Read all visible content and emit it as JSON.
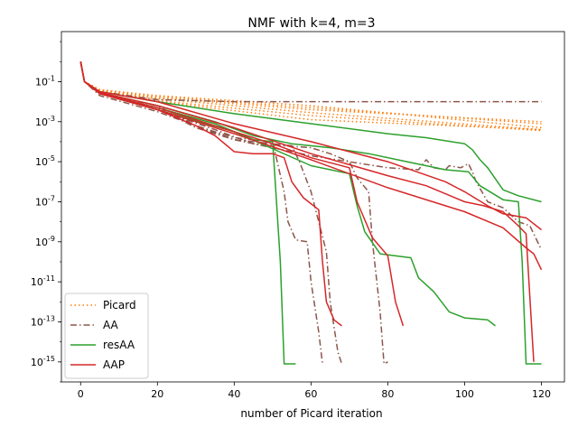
{
  "chart_data": {
    "type": "line",
    "title": "NMF with k=4, m=3",
    "xlabel": "number of Picard iteration",
    "ylabel": "",
    "xlim": [
      -5,
      126
    ],
    "ylog": true,
    "ylim_exp": [
      -16,
      1.5
    ],
    "x_ticks": [
      0,
      20,
      40,
      60,
      80,
      100,
      120
    ],
    "y_ticks": [
      {
        "exp": -1,
        "label": "10^-1"
      },
      {
        "exp": -3,
        "label": "10^-3"
      },
      {
        "exp": -5,
        "label": "10^-5"
      },
      {
        "exp": -7,
        "label": "10^-7"
      },
      {
        "exp": -9,
        "label": "10^-9"
      },
      {
        "exp": -11,
        "label": "10^-11"
      },
      {
        "exp": -13,
        "label": "10^-13"
      },
      {
        "exp": -15,
        "label": "10^-15"
      }
    ],
    "grid": false,
    "legend": {
      "placement": "lower-left",
      "entries": [
        {
          "label": "Picard",
          "color": "#ff7f0e",
          "dash": "dotted"
        },
        {
          "label": "AA",
          "color": "#8c564b",
          "dash": "dashdot"
        },
        {
          "label": "resAA",
          "color": "#2ca02c",
          "dash": "solid"
        },
        {
          "label": "AAP",
          "color": "#d62728",
          "dash": "solid"
        }
      ]
    },
    "series": [
      {
        "group": "Picard",
        "color": "#ff7f0e",
        "dash": "dotted",
        "points": [
          [
            0,
            0
          ],
          [
            1,
            -1
          ],
          [
            5,
            -1.4
          ],
          [
            20,
            -1.7
          ],
          [
            60,
            -2.2
          ],
          [
            120,
            -3.3
          ]
        ]
      },
      {
        "group": "Picard",
        "color": "#ff7f0e",
        "dash": "dotted",
        "points": [
          [
            0,
            0
          ],
          [
            1,
            -1
          ],
          [
            5,
            -1.4
          ],
          [
            20,
            -1.75
          ],
          [
            60,
            -2.3
          ],
          [
            120,
            -3.1
          ]
        ]
      },
      {
        "group": "Picard",
        "color": "#ff7f0e",
        "dash": "dotted",
        "points": [
          [
            0,
            0
          ],
          [
            1,
            -1
          ],
          [
            5,
            -1.4
          ],
          [
            20,
            -1.8
          ],
          [
            60,
            -2.4
          ],
          [
            120,
            -3.0
          ]
        ]
      },
      {
        "group": "Picard",
        "color": "#ff7f0e",
        "dash": "dotted",
        "points": [
          [
            0,
            0
          ],
          [
            1,
            -1
          ],
          [
            5,
            -1.45
          ],
          [
            20,
            -1.85
          ],
          [
            60,
            -2.55
          ],
          [
            120,
            -3.4
          ]
        ]
      },
      {
        "group": "Picard",
        "color": "#ff7f0e",
        "dash": "dotted",
        "points": [
          [
            0,
            0
          ],
          [
            1,
            -1
          ],
          [
            5,
            -1.5
          ],
          [
            20,
            -1.95
          ],
          [
            60,
            -2.7
          ],
          [
            120,
            -3.45
          ]
        ]
      },
      {
        "group": "Picard",
        "color": "#ff7f0e",
        "dash": "dotted",
        "points": [
          [
            0,
            0
          ],
          [
            1,
            -1
          ],
          [
            5,
            -1.5
          ],
          [
            20,
            -2.0
          ],
          [
            60,
            -2.9
          ],
          [
            120,
            -3.4
          ]
        ]
      },
      {
        "group": "AA",
        "color": "#8c564b",
        "dash": "dashdot",
        "points": [
          [
            0,
            0
          ],
          [
            1,
            -1
          ],
          [
            5,
            -1.5
          ],
          [
            20,
            -1.9
          ],
          [
            40,
            -2.0
          ],
          [
            120,
            -2.0
          ]
        ]
      },
      {
        "group": "AA",
        "color": "#8c564b",
        "dash": "dashdot",
        "points": [
          [
            0,
            0
          ],
          [
            1,
            -1
          ],
          [
            5,
            -1.6
          ],
          [
            20,
            -2.2
          ],
          [
            30,
            -3.2
          ],
          [
            40,
            -3.8
          ],
          [
            50,
            -4.0
          ],
          [
            53,
            -6.5
          ],
          [
            54,
            -8.0
          ],
          [
            56,
            -8.9
          ],
          [
            59,
            -9.0
          ],
          [
            60,
            -11
          ],
          [
            62,
            -13.5
          ],
          [
            63,
            -15.1
          ]
        ]
      },
      {
        "group": "AA",
        "color": "#8c564b",
        "dash": "dashdot",
        "points": [
          [
            0,
            0
          ],
          [
            1,
            -1
          ],
          [
            5,
            -1.6
          ],
          [
            20,
            -2.3
          ],
          [
            30,
            -3.3
          ],
          [
            40,
            -3.9
          ],
          [
            55,
            -4.2
          ],
          [
            57,
            -5.0
          ],
          [
            60,
            -6.5
          ],
          [
            62,
            -8.0
          ],
          [
            64,
            -9.5
          ],
          [
            65,
            -12
          ],
          [
            67,
            -14.5
          ],
          [
            68,
            -15.1
          ]
        ]
      },
      {
        "group": "AA",
        "color": "#8c564b",
        "dash": "dashdot",
        "points": [
          [
            0,
            0
          ],
          [
            1,
            -1
          ],
          [
            5,
            -1.6
          ],
          [
            20,
            -2.4
          ],
          [
            35,
            -3.4
          ],
          [
            45,
            -4.1
          ],
          [
            60,
            -4.3
          ],
          [
            65,
            -4.6
          ],
          [
            70,
            -5.0
          ],
          [
            72,
            -5.8
          ],
          [
            75,
            -6.5
          ],
          [
            76,
            -9
          ],
          [
            78,
            -12.5
          ],
          [
            79,
            -15.1
          ],
          [
            80,
            -15.0
          ]
        ]
      },
      {
        "group": "AA",
        "color": "#8c564b",
        "dash": "dashdot",
        "points": [
          [
            0,
            0
          ],
          [
            1,
            -1
          ],
          [
            5,
            -1.7
          ],
          [
            20,
            -2.5
          ],
          [
            40,
            -3.9
          ],
          [
            60,
            -4.7
          ],
          [
            80,
            -5.3
          ],
          [
            88,
            -5.4
          ],
          [
            90,
            -4.9
          ],
          [
            92,
            -5.3
          ],
          [
            95,
            -5.4
          ],
          [
            96,
            -5.2
          ],
          [
            99,
            -5.3
          ],
          [
            101,
            -5.1
          ],
          [
            102,
            -5.5
          ],
          [
            103,
            -6.0
          ],
          [
            106,
            -7.0
          ],
          [
            110,
            -7.3
          ],
          [
            114,
            -8.0
          ],
          [
            117,
            -8.2
          ],
          [
            120,
            -9.4
          ]
        ]
      },
      {
        "group": "resAA",
        "color": "#2ca02c",
        "dash": "solid",
        "points": [
          [
            0,
            0
          ],
          [
            1,
            -1
          ],
          [
            5,
            -1.5
          ],
          [
            20,
            -2.0
          ],
          [
            40,
            -2.6
          ],
          [
            60,
            -3.1
          ],
          [
            80,
            -3.6
          ],
          [
            90,
            -3.8
          ],
          [
            100,
            -4.1
          ],
          [
            102,
            -4.4
          ],
          [
            104,
            -4.9
          ],
          [
            106,
            -5.3
          ],
          [
            110,
            -6.4
          ],
          [
            114,
            -6.7
          ],
          [
            120,
            -7.0
          ]
        ]
      },
      {
        "group": "resAA",
        "color": "#2ca02c",
        "dash": "solid",
        "points": [
          [
            0,
            0
          ],
          [
            1,
            -1
          ],
          [
            5,
            -1.55
          ],
          [
            20,
            -2.2
          ],
          [
            35,
            -3.0
          ],
          [
            45,
            -3.7
          ],
          [
            55,
            -4.1
          ],
          [
            65,
            -4.3
          ],
          [
            75,
            -4.6
          ],
          [
            85,
            -5.0
          ],
          [
            95,
            -5.4
          ],
          [
            101,
            -5.5
          ],
          [
            104,
            -6.2
          ],
          [
            110,
            -6.9
          ],
          [
            114,
            -7.0
          ],
          [
            115,
            -10
          ],
          [
            116,
            -15.1
          ],
          [
            117,
            -15.1
          ],
          [
            120,
            -15.1
          ]
        ]
      },
      {
        "group": "resAA",
        "color": "#2ca02c",
        "dash": "solid",
        "points": [
          [
            0,
            0
          ],
          [
            1,
            -1
          ],
          [
            5,
            -1.6
          ],
          [
            20,
            -2.3
          ],
          [
            35,
            -3.1
          ],
          [
            45,
            -3.9
          ],
          [
            50,
            -4.0
          ],
          [
            52,
            -10
          ],
          [
            53,
            -15.1
          ],
          [
            56,
            -15.1
          ]
        ]
      },
      {
        "group": "resAA",
        "color": "#2ca02c",
        "dash": "solid",
        "points": [
          [
            0,
            0
          ],
          [
            1,
            -1
          ],
          [
            5,
            -1.6
          ],
          [
            20,
            -2.4
          ],
          [
            40,
            -3.5
          ],
          [
            60,
            -5.2
          ],
          [
            70,
            -5.6
          ],
          [
            72,
            -7.2
          ],
          [
            74,
            -8.5
          ],
          [
            78,
            -9.6
          ],
          [
            86,
            -9.8
          ],
          [
            88,
            -10.8
          ],
          [
            92,
            -11.5
          ],
          [
            96,
            -12.5
          ],
          [
            100,
            -12.8
          ],
          [
            106,
            -12.9
          ],
          [
            108,
            -13.2
          ]
        ]
      },
      {
        "group": "AAP",
        "color": "#d62728",
        "dash": "solid",
        "points": [
          [
            0,
            0
          ],
          [
            1,
            -1
          ],
          [
            5,
            -1.6
          ],
          [
            20,
            -2.4
          ],
          [
            30,
            -3.2
          ],
          [
            35,
            -3.7
          ],
          [
            40,
            -4.5
          ],
          [
            45,
            -4.6
          ],
          [
            50,
            -4.6
          ],
          [
            53,
            -4.8
          ],
          [
            55,
            -6.0
          ],
          [
            58,
            -6.8
          ],
          [
            62,
            -7.4
          ],
          [
            63,
            -10.0
          ],
          [
            64,
            -12.0
          ],
          [
            66,
            -12.9
          ],
          [
            68,
            -13.2
          ]
        ]
      },
      {
        "group": "AAP",
        "color": "#d62728",
        "dash": "solid",
        "points": [
          [
            0,
            0
          ],
          [
            1,
            -1
          ],
          [
            5,
            -1.6
          ],
          [
            20,
            -2.3
          ],
          [
            40,
            -3.5
          ],
          [
            50,
            -4.1
          ],
          [
            60,
            -4.8
          ],
          [
            70,
            -5.3
          ],
          [
            72,
            -7.0
          ],
          [
            76,
            -8.8
          ],
          [
            80,
            -9.7
          ],
          [
            82,
            -12.0
          ],
          [
            84,
            -13.2
          ]
        ]
      },
      {
        "group": "AAP",
        "color": "#d62728",
        "dash": "solid",
        "points": [
          [
            0,
            0
          ],
          [
            1,
            -1
          ],
          [
            5,
            -1.55
          ],
          [
            20,
            -2.2
          ],
          [
            40,
            -3.3
          ],
          [
            60,
            -4.6
          ],
          [
            80,
            -5.7
          ],
          [
            90,
            -6.2
          ],
          [
            100,
            -7.0
          ],
          [
            105,
            -7.2
          ],
          [
            110,
            -7.5
          ],
          [
            114,
            -8.2
          ],
          [
            116,
            -8.6
          ],
          [
            118,
            -15.0
          ]
        ]
      },
      {
        "group": "AAP",
        "color": "#d62728",
        "dash": "solid",
        "points": [
          [
            0,
            0
          ],
          [
            1,
            -1
          ],
          [
            5,
            -1.5
          ],
          [
            20,
            -2.0
          ],
          [
            40,
            -3.1
          ],
          [
            60,
            -4.0
          ],
          [
            80,
            -5.0
          ],
          [
            95,
            -6.0
          ],
          [
            100,
            -6.5
          ],
          [
            106,
            -7.2
          ],
          [
            110,
            -7.6
          ],
          [
            116,
            -7.8
          ],
          [
            120,
            -8.4
          ]
        ]
      },
      {
        "group": "AAP",
        "color": "#d62728",
        "dash": "solid",
        "points": [
          [
            0,
            0
          ],
          [
            1,
            -1
          ],
          [
            5,
            -1.6
          ],
          [
            20,
            -2.4
          ],
          [
            40,
            -3.6
          ],
          [
            60,
            -4.9
          ],
          [
            80,
            -6.3
          ],
          [
            100,
            -7.5
          ],
          [
            110,
            -8.3
          ],
          [
            116,
            -9.3
          ],
          [
            118,
            -9.6
          ],
          [
            120,
            -10.4
          ]
        ]
      }
    ]
  }
}
